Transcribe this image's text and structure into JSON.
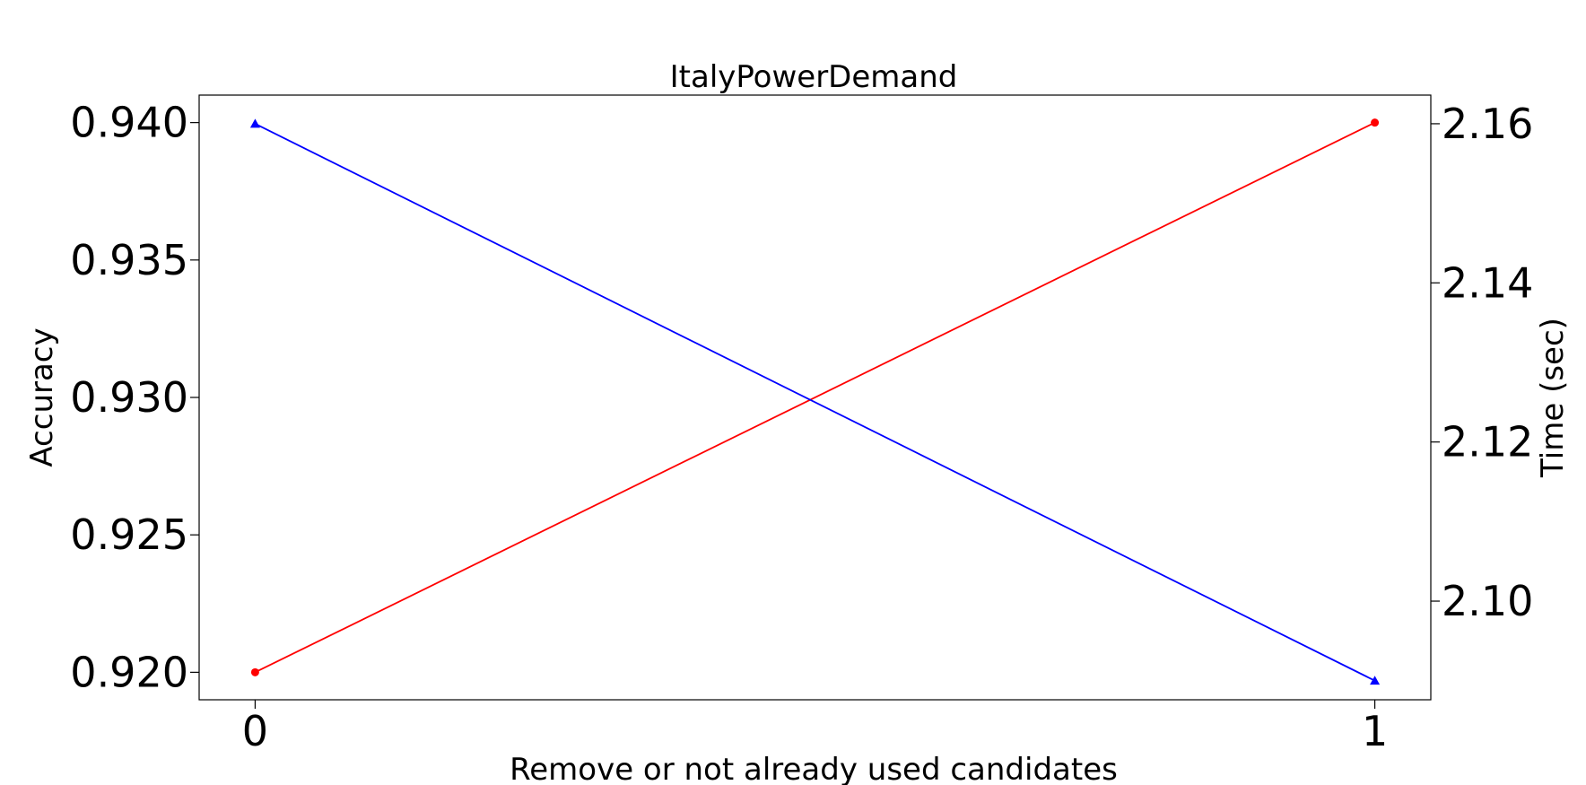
{
  "chart_data": {
    "type": "line",
    "title": "ItalyPowerDemand",
    "xlabel": "Remove or not already used candidates",
    "ylabel_left": "Accuracy",
    "ylabel_right": "Time (sec)",
    "x": [
      0,
      1
    ],
    "x_ticks": [
      "0",
      "1"
    ],
    "xlim": [
      -0.05,
      1.05
    ],
    "ylim_left": [
      0.919,
      0.941
    ],
    "ylim_right": [
      2.0876,
      2.1636
    ],
    "y_ticks_left": [
      "0.920",
      "0.925",
      "0.930",
      "0.935",
      "0.940"
    ],
    "y_ticks_right": [
      "2.10",
      "2.12",
      "2.14",
      "2.16"
    ],
    "grid": false,
    "series": [
      {
        "axis": "left",
        "values": [
          0.92,
          0.94
        ],
        "color": "#ff0000",
        "marker": "circle"
      },
      {
        "axis": "right",
        "values": [
          2.16,
          2.09
        ],
        "color": "#0000ff",
        "marker": "triangle"
      }
    ]
  }
}
